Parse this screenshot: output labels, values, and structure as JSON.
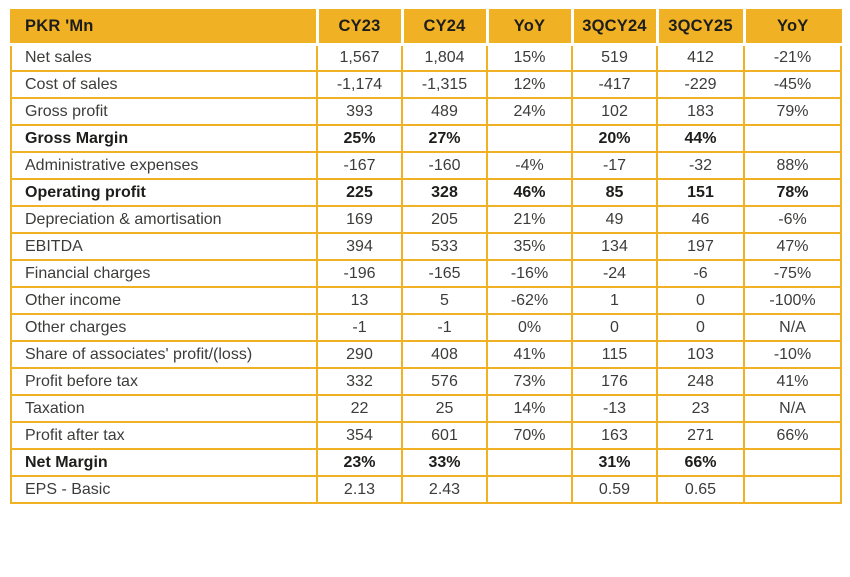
{
  "table": {
    "columns": [
      "PKR 'Mn",
      "CY23",
      "CY24",
      "YoY",
      "3QCY24",
      "3QCY25",
      "YoY"
    ],
    "rows": [
      {
        "label": "Net sales",
        "bold": false,
        "values": [
          "1,567",
          "1,804",
          "15%",
          "519",
          "412",
          "-21%"
        ]
      },
      {
        "label": "Cost of sales",
        "bold": false,
        "values": [
          "-1,174",
          "-1,315",
          "12%",
          "-417",
          "-229",
          "-45%"
        ]
      },
      {
        "label": "Gross profit",
        "bold": false,
        "values": [
          "393",
          "489",
          "24%",
          "102",
          "183",
          "79%"
        ]
      },
      {
        "label": "Gross Margin",
        "bold": true,
        "values": [
          "25%",
          "27%",
          "",
          "20%",
          "44%",
          ""
        ]
      },
      {
        "label": "Administrative expenses",
        "bold": false,
        "values": [
          "-167",
          "-160",
          "-4%",
          "-17",
          "-32",
          "88%"
        ]
      },
      {
        "label": "Operating profit",
        "bold": true,
        "values": [
          "225",
          "328",
          "46%",
          "85",
          "151",
          "78%"
        ]
      },
      {
        "label": "Depreciation & amortisation",
        "bold": false,
        "values": [
          "169",
          "205",
          "21%",
          "49",
          "46",
          "-6%"
        ]
      },
      {
        "label": "EBITDA",
        "bold": false,
        "values": [
          "394",
          "533",
          "35%",
          "134",
          "197",
          "47%"
        ]
      },
      {
        "label": "Financial charges",
        "bold": false,
        "values": [
          "-196",
          "-165",
          "-16%",
          "-24",
          "-6",
          "-75%"
        ]
      },
      {
        "label": "Other income",
        "bold": false,
        "values": [
          "13",
          "5",
          "-62%",
          "1",
          "0",
          "-100%"
        ]
      },
      {
        "label": "Other charges",
        "bold": false,
        "values": [
          "-1",
          "-1",
          "0%",
          "0",
          "0",
          "N/A"
        ]
      },
      {
        "label": "Share of associates' profit/(loss)",
        "bold": false,
        "values": [
          "290",
          "408",
          "41%",
          "115",
          "103",
          "-10%"
        ]
      },
      {
        "label": "Profit before tax",
        "bold": false,
        "values": [
          "332",
          "576",
          "73%",
          "176",
          "248",
          "41%"
        ]
      },
      {
        "label": "Taxation",
        "bold": false,
        "values": [
          "22",
          "25",
          "14%",
          "-13",
          "23",
          "N/A"
        ]
      },
      {
        "label": "Profit after tax",
        "bold": false,
        "values": [
          "354",
          "601",
          "70%",
          "163",
          "271",
          "66%"
        ]
      },
      {
        "label": "Net Margin",
        "bold": true,
        "values": [
          "23%",
          "33%",
          "",
          "31%",
          "66%",
          ""
        ]
      },
      {
        "label": "EPS - Basic",
        "bold": false,
        "values": [
          "2.13",
          "2.43",
          "",
          "0.59",
          "0.65",
          ""
        ]
      }
    ]
  },
  "colors": {
    "accent_gold": "#F0B124",
    "header_text": "#1D1D1B",
    "body_text": "#3C3C3B",
    "cell_background": "#FFFFFF"
  }
}
